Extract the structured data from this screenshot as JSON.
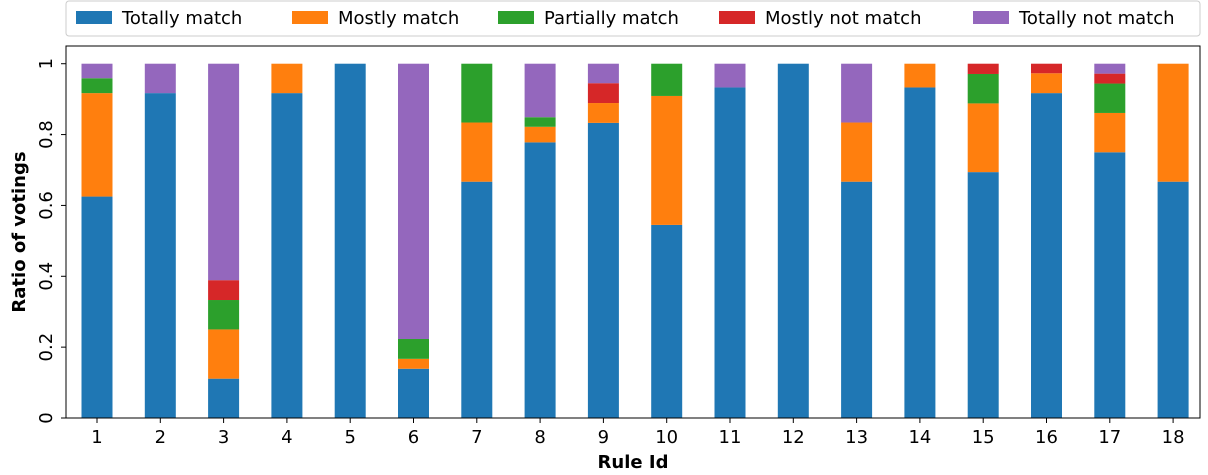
{
  "chart_data": {
    "type": "bar",
    "stacked": true,
    "xlabel": "Rule Id",
    "ylabel": "Ratio of votings",
    "ylim": [
      0,
      1.05
    ],
    "yticks": [
      0,
      0.2,
      0.4,
      0.6,
      0.8,
      1
    ],
    "ytick_labels": [
      "0",
      "0.2",
      "0.4",
      "0.6",
      "0.8",
      "1"
    ],
    "legend_position": "top",
    "grid": false,
    "categories": [
      "1",
      "2",
      "3",
      "4",
      "5",
      "6",
      "7",
      "8",
      "9",
      "10",
      "11",
      "12",
      "13",
      "14",
      "15",
      "16",
      "17",
      "18"
    ],
    "series": [
      {
        "name": "Totally match",
        "color": "#1f77b4",
        "values": [
          0.625,
          0.917,
          0.111,
          0.917,
          1.0,
          0.139,
          0.667,
          0.778,
          0.833,
          0.545,
          0.933,
          1.0,
          0.667,
          0.933,
          0.694,
          0.917,
          0.75,
          0.667
        ]
      },
      {
        "name": "Mostly match",
        "color": "#ff7f0e",
        "values": [
          0.292,
          0.0,
          0.139,
          0.083,
          0.0,
          0.028,
          0.167,
          0.044,
          0.056,
          0.364,
          0.0,
          0.0,
          0.167,
          0.067,
          0.194,
          0.056,
          0.111,
          0.333
        ]
      },
      {
        "name": "Partially match",
        "color": "#2ca02c",
        "values": [
          0.042,
          0.0,
          0.083,
          0.0,
          0.0,
          0.056,
          0.166,
          0.027,
          0.0,
          0.091,
          0.0,
          0.0,
          0.0,
          0.0,
          0.083,
          0.0,
          0.083,
          0.0
        ]
      },
      {
        "name": "Mostly not match",
        "color": "#d62728",
        "values": [
          0.0,
          0.0,
          0.056,
          0.0,
          0.0,
          0.0,
          0.0,
          0.0,
          0.056,
          0.0,
          0.0,
          0.0,
          0.0,
          0.0,
          0.029,
          0.027,
          0.028,
          0.0
        ]
      },
      {
        "name": "Totally not match",
        "color": "#9467bd",
        "values": [
          0.041,
          0.083,
          0.611,
          0.0,
          0.0,
          0.777,
          0.0,
          0.151,
          0.055,
          0.0,
          0.067,
          0.0,
          0.166,
          0.0,
          0.0,
          0.0,
          0.028,
          0.0
        ]
      }
    ]
  }
}
